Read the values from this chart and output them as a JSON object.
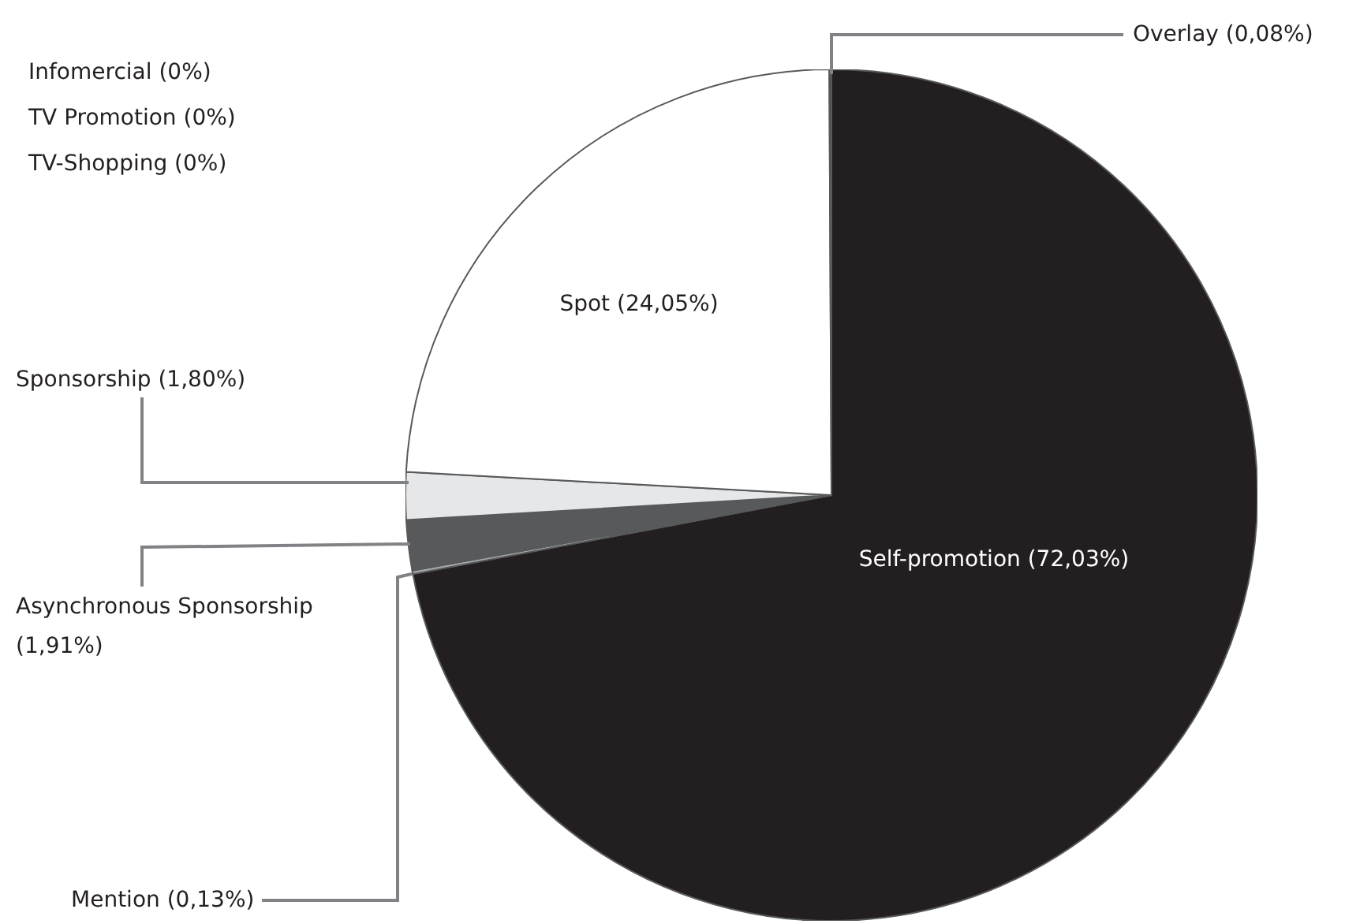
{
  "chart_data": {
    "type": "pie",
    "categories": [
      "Self-promotion",
      "Mention",
      "Asynchronous Sponsorship",
      "Sponsorship",
      "Infomercial",
      "TV Promotion",
      "TV-Shopping",
      "Spot",
      "Overlay"
    ],
    "values": [
      72.03,
      0.13,
      1.91,
      1.8,
      0,
      0,
      0,
      24.05,
      0.08
    ],
    "value_labels": [
      "(72,03%)",
      "(0,13%)",
      "(1,91%)",
      "(1,80%)",
      "(0%)",
      "(0%)",
      "(0%)",
      "(24,05%)",
      "(0,08%)"
    ],
    "colors": [
      "#231f20",
      "#a7a9ac",
      "#58595b",
      "#e6e7e8",
      "#bcbec0",
      "#bcbec0",
      "#bcbec0",
      "#ffffff",
      "#414042"
    ]
  }
}
